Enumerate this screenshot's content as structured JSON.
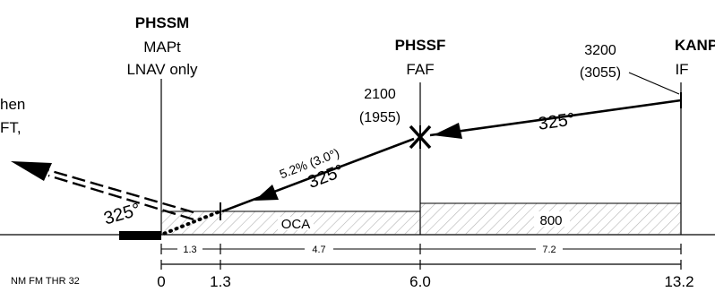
{
  "fixes": {
    "phssm": {
      "name": "PHSSM",
      "role": "MAPt",
      "note": "LNAV only"
    },
    "phssf": {
      "name": "PHSSF",
      "role": "FAF",
      "alt": "2100",
      "alt_hat": "(1955)"
    },
    "kanpu": {
      "name": "KANPU",
      "role": "IF",
      "alt": "3200",
      "alt_hat": "(3055)"
    }
  },
  "missed_fragment": {
    "line1": "hen",
    "line2": "FT,"
  },
  "courses": {
    "inbound_if": "325°",
    "final_gradient": "5.2% (3.0°)",
    "final": "325°",
    "missed": "325°"
  },
  "minima": {
    "oca": "OCA",
    "alt_800": "800"
  },
  "segments": [
    "1.3",
    "4.7",
    "7.2"
  ],
  "distance_axis": {
    "caption": "NM FM THR 32",
    "ticks": [
      "0",
      "1.3",
      "6.0",
      "13.2"
    ]
  }
}
